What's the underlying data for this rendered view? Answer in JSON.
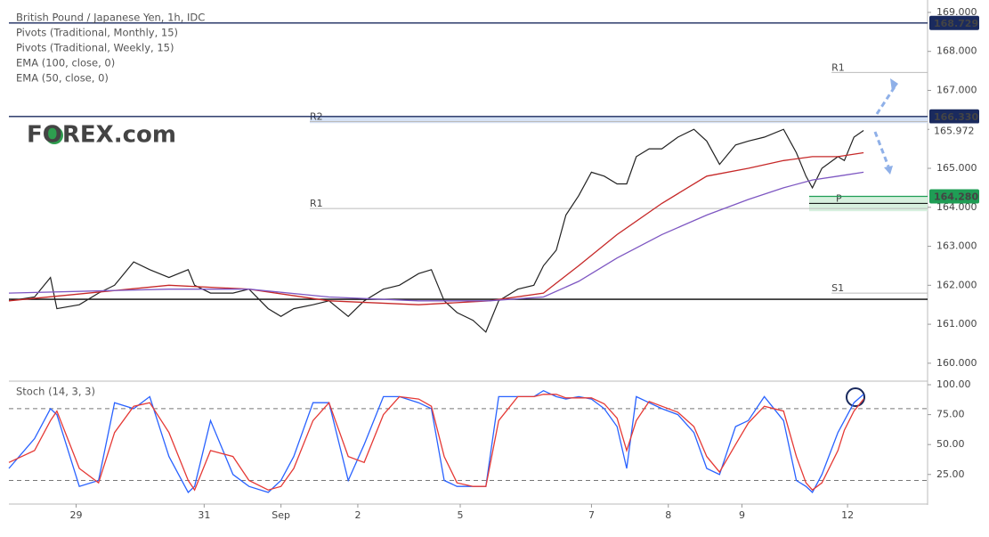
{
  "chart_data": [
    {
      "type": "line",
      "title": "British Pound / Japanese Yen, 1h, IDC",
      "indicators": [
        "Pivots (Traditional, Monthly, 15)",
        "Pivots (Traditional, Weekly, 15)",
        "EMA (100, close, 0)",
        "EMA (50, close, 0)"
      ],
      "logo": "FOREX.com",
      "xlim": [
        0,
        287
      ],
      "ylim": [
        159.54,
        169.09
      ],
      "yticks": [
        {
          "value": 160,
          "label": "160.000"
        },
        {
          "value": 161,
          "label": "161.000"
        },
        {
          "value": 162,
          "label": "162.000"
        },
        {
          "value": 163,
          "label": "163.000"
        },
        {
          "value": 164,
          "label": "164.000"
        },
        {
          "value": 165,
          "label": "165.000"
        },
        {
          "value": 166,
          "label": "166.000"
        },
        {
          "value": 167,
          "label": "167.000"
        },
        {
          "value": 168,
          "label": "168.000"
        },
        {
          "value": 169,
          "label": "169.000"
        }
      ],
      "series": [
        {
          "color": "#222222",
          "x": [
            0,
            8,
            13,
            15,
            22,
            28,
            33,
            39,
            44,
            50,
            56,
            58,
            63,
            70,
            75,
            81,
            85,
            89,
            95,
            100,
            106,
            111,
            117,
            122,
            128,
            132,
            136,
            140,
            145,
            149,
            153,
            159,
            164,
            167,
            171,
            174,
            178,
            182,
            186,
            190,
            193,
            196,
            200,
            204,
            209,
            214,
            218,
            222,
            227,
            231,
            236,
            242,
            246,
            249,
            251,
            254,
            259,
            261,
            264,
            267
          ],
          "values": [
            161.6,
            161.7,
            162.2,
            161.4,
            161.5,
            161.8,
            162.0,
            162.6,
            162.4,
            162.2,
            162.4,
            162.0,
            161.8,
            161.8,
            161.9,
            161.4,
            161.2,
            161.4,
            161.5,
            161.6,
            161.2,
            161.6,
            161.9,
            162.0,
            162.3,
            162.4,
            161.6,
            161.3,
            161.1,
            160.8,
            161.6,
            161.9,
            162.0,
            162.5,
            162.9,
            163.8,
            164.3,
            164.9,
            164.8,
            164.6,
            164.6,
            165.3,
            165.5,
            165.5,
            165.8,
            166.0,
            165.7,
            165.1,
            165.6,
            165.7,
            165.8,
            166.0,
            165.4,
            164.8,
            164.5,
            165.0,
            165.3,
            165.2,
            165.8,
            165.972
          ]
        },
        {
          "color": "#c62828",
          "x": [
            0,
            50,
            75,
            100,
            128,
            150,
            167,
            178,
            190,
            204,
            218,
            231,
            242,
            251,
            259,
            267
          ],
          "values": [
            161.6,
            162.0,
            161.9,
            161.6,
            161.5,
            161.6,
            161.8,
            162.5,
            163.3,
            164.1,
            164.8,
            165.0,
            165.2,
            165.3,
            165.3,
            165.4
          ]
        },
        {
          "color": "#7e57c2",
          "x": [
            0,
            50,
            75,
            100,
            128,
            150,
            167,
            178,
            190,
            204,
            218,
            231,
            242,
            251,
            259,
            267
          ],
          "values": [
            161.8,
            161.9,
            161.9,
            161.7,
            161.6,
            161.6,
            161.7,
            162.1,
            162.7,
            163.3,
            163.8,
            164.2,
            164.5,
            164.7,
            164.8,
            164.9
          ]
        }
      ],
      "hlines": [
        {
          "value": 168.729,
          "label": "168.729",
          "color": "#1a2a5e",
          "start": 0
        },
        {
          "value": 166.33,
          "label": "166.330",
          "color": "#1a2a5e",
          "start": 0
        },
        {
          "value": 164.28,
          "label": "164.280",
          "color": "#1f9d55",
          "start": 250
        },
        {
          "value": 161.64,
          "color": "#000000",
          "start": 0
        }
      ],
      "zones": [
        {
          "from": 166.16,
          "to": 166.33,
          "color": "#d6e2f5",
          "start": 94
        },
        {
          "from": 163.9,
          "to": 164.28,
          "color": "#d7f0de",
          "start": 250
        }
      ],
      "pivots": [
        {
          "name": "R2",
          "value": 166.2,
          "start": 94
        },
        {
          "name": "R1",
          "value": 167.46,
          "start": 257
        },
        {
          "name": "R1",
          "value": 163.97,
          "start": 94
        },
        {
          "name": "S1",
          "value": 161.8,
          "start": 257
        },
        {
          "name": "P",
          "value": 164.1,
          "start": 250
        }
      ],
      "last": {
        "value": 165.972,
        "label": "165.972"
      }
    },
    {
      "type": "line",
      "title": "Stoch (14, 3, 3)",
      "xlim": [
        0,
        287
      ],
      "ylim": [
        1,
        101.5
      ],
      "yticks": [
        {
          "value": 25,
          "label": "25.00"
        },
        {
          "value": 50,
          "label": "50.00"
        },
        {
          "value": 75,
          "label": "75.00"
        },
        {
          "value": 100,
          "label": "100.00"
        }
      ],
      "bands": [
        20,
        80
      ],
      "xticks": [
        {
          "value": 21,
          "label": "29"
        },
        {
          "value": 61,
          "label": "31"
        },
        {
          "value": 85,
          "label": "Sep"
        },
        {
          "value": 109,
          "label": "2"
        },
        {
          "value": 141,
          "label": "5"
        },
        {
          "value": 182,
          "label": "7"
        },
        {
          "value": 206,
          "label": "8"
        },
        {
          "value": 229,
          "label": "9"
        },
        {
          "value": 262,
          "label": "12"
        }
      ],
      "series": [
        {
          "color": "#2962ff",
          "x": [
            0,
            8,
            13,
            15,
            22,
            28,
            33,
            39,
            44,
            50,
            56,
            58,
            63,
            70,
            75,
            81,
            85,
            89,
            95,
            100,
            106,
            111,
            117,
            122,
            128,
            132,
            136,
            140,
            145,
            149,
            153,
            159,
            164,
            167,
            171,
            174,
            178,
            182,
            186,
            190,
            193,
            196,
            200,
            204,
            209,
            214,
            218,
            222,
            227,
            231,
            236,
            242,
            246,
            249,
            251,
            254,
            259,
            261,
            264,
            267
          ],
          "values": [
            30,
            55,
            80,
            75,
            15,
            20,
            85,
            80,
            90,
            40,
            10,
            15,
            70,
            25,
            15,
            10,
            20,
            40,
            85,
            85,
            20,
            50,
            90,
            90,
            85,
            80,
            20,
            15,
            15,
            15,
            90,
            90,
            90,
            95,
            90,
            88,
            90,
            88,
            80,
            65,
            30,
            90,
            85,
            80,
            75,
            60,
            30,
            25,
            65,
            70,
            90,
            70,
            20,
            15,
            10,
            25,
            60,
            70,
            85,
            92
          ]
        },
        {
          "color": "#e53935",
          "x": [
            0,
            8,
            13,
            15,
            22,
            28,
            33,
            39,
            44,
            50,
            56,
            58,
            63,
            70,
            75,
            81,
            85,
            89,
            95,
            100,
            106,
            111,
            117,
            122,
            128,
            132,
            136,
            140,
            145,
            149,
            153,
            159,
            164,
            167,
            171,
            174,
            178,
            182,
            186,
            190,
            193,
            196,
            200,
            204,
            209,
            214,
            218,
            222,
            227,
            231,
            236,
            242,
            246,
            249,
            251,
            254,
            259,
            261,
            264,
            267
          ],
          "values": [
            35,
            45,
            70,
            78,
            30,
            18,
            60,
            82,
            85,
            60,
            20,
            12,
            45,
            40,
            20,
            12,
            15,
            30,
            70,
            85,
            40,
            35,
            75,
            90,
            88,
            82,
            40,
            18,
            15,
            15,
            70,
            90,
            90,
            92,
            92,
            89,
            89,
            89,
            84,
            72,
            45,
            70,
            86,
            82,
            77,
            65,
            40,
            27,
            50,
            68,
            82,
            78,
            40,
            18,
            12,
            18,
            45,
            62,
            78,
            88
          ]
        }
      ]
    }
  ]
}
